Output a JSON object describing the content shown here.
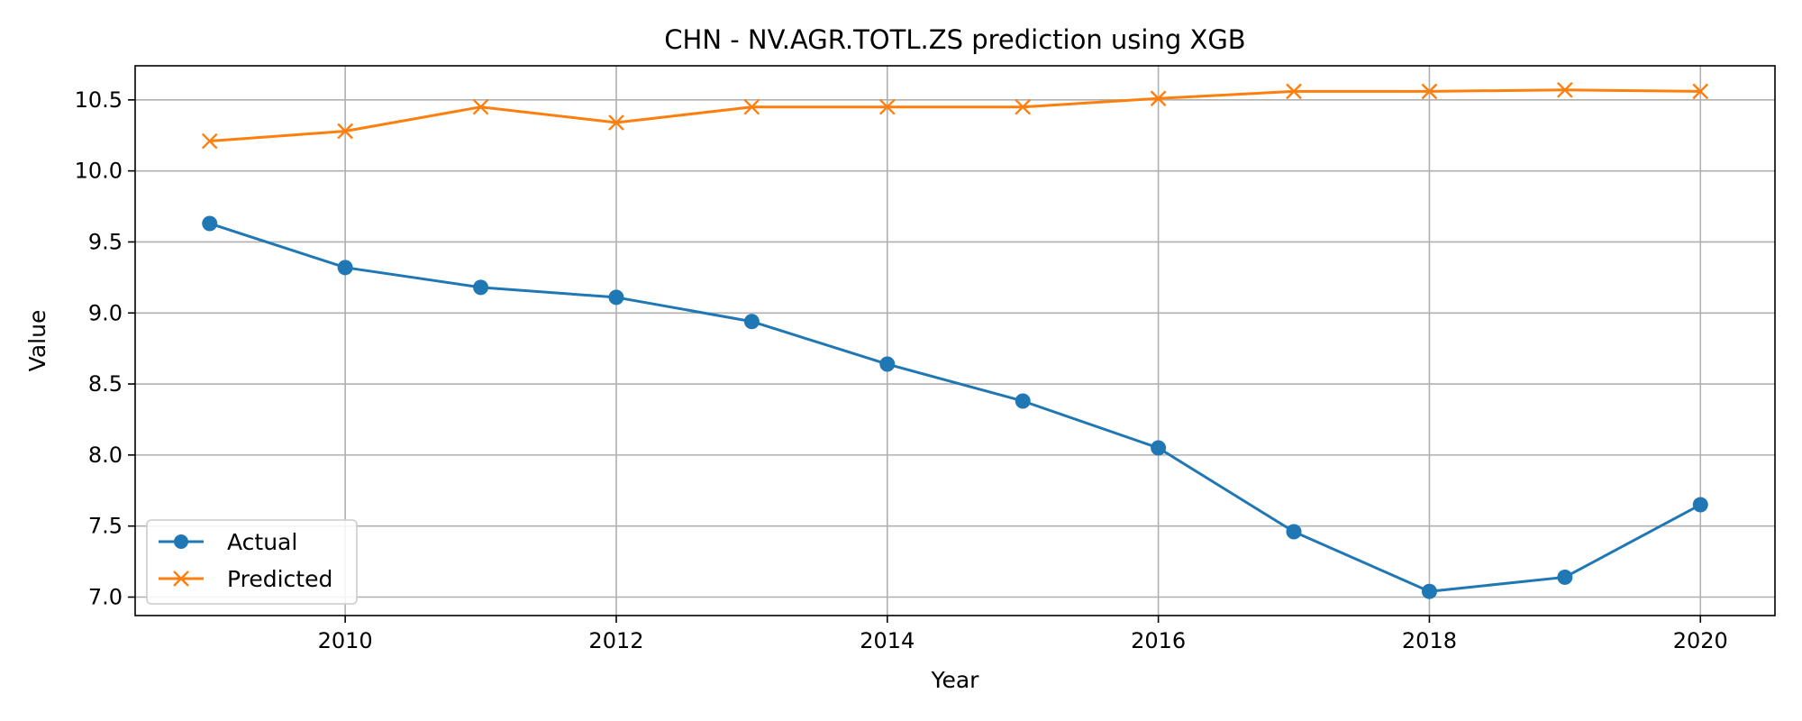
{
  "chart_data": {
    "type": "line",
    "title": "CHN - NV.AGR.TOTL.ZS prediction using XGB",
    "xlabel": "Year",
    "ylabel": "Value",
    "x": [
      2009,
      2010,
      2011,
      2012,
      2013,
      2014,
      2015,
      2016,
      2017,
      2018,
      2019,
      2020
    ],
    "xticks": [
      2010,
      2012,
      2014,
      2016,
      2018,
      2020
    ],
    "yticks": [
      7.0,
      7.5,
      8.0,
      8.5,
      9.0,
      9.5,
      10.0,
      10.5
    ],
    "ytick_labels": [
      "7.0",
      "7.5",
      "8.0",
      "8.5",
      "9.0",
      "9.5",
      "10.0",
      "10.5"
    ],
    "xlim": [
      2008.45,
      2020.55
    ],
    "ylim": [
      6.87,
      10.74
    ],
    "grid": true,
    "legend_position": "lower-left",
    "series": [
      {
        "name": "Actual",
        "color": "#1f77b4",
        "marker": "circle",
        "values": [
          9.63,
          9.32,
          9.18,
          9.11,
          8.94,
          8.64,
          8.38,
          8.05,
          7.46,
          7.04,
          7.14,
          7.65
        ]
      },
      {
        "name": "Predicted",
        "color": "#ff7f0e",
        "marker": "x",
        "values": [
          10.21,
          10.28,
          10.45,
          10.34,
          10.45,
          10.45,
          10.45,
          10.51,
          10.56,
          10.56,
          10.57,
          10.56
        ]
      }
    ]
  }
}
